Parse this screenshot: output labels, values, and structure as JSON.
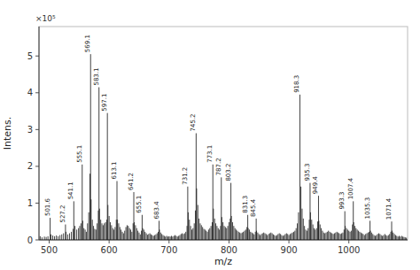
{
  "chart_data": {
    "type": "stem",
    "xlabel": "m/z",
    "ylabel": "Intens.",
    "xlim": [
      483,
      1098
    ],
    "ylim": [
      0,
      5.8
    ],
    "xticks": [
      500,
      600,
      700,
      800,
      900,
      1000
    ],
    "yticks": [
      0,
      1,
      2,
      3,
      4,
      5
    ],
    "color": "#111111",
    "x": [
      485,
      488,
      492,
      495,
      498,
      501.6,
      503,
      506,
      509,
      512,
      515,
      518,
      521,
      524,
      527.2,
      528,
      531,
      534,
      537,
      540,
      541.1,
      543,
      546,
      549,
      551,
      553,
      555.1,
      556,
      558,
      560,
      562,
      564,
      566,
      568,
      569.1,
      570,
      572,
      574,
      576,
      578,
      580,
      582,
      583.1,
      584,
      586,
      588,
      590,
      592,
      594,
      596,
      597.1,
      598,
      600,
      602,
      604,
      606,
      608,
      610,
      612,
      613.1,
      614,
      616,
      618,
      620,
      622,
      624,
      626,
      628,
      630,
      632,
      634,
      636,
      638,
      640,
      641.2,
      642,
      644,
      646,
      648,
      650,
      652,
      654,
      655.1,
      656,
      658,
      660,
      662,
      664,
      666,
      668,
      670,
      672,
      674,
      676,
      678,
      680,
      682,
      683.4,
      684,
      686,
      688,
      690,
      692,
      694,
      696,
      698,
      700,
      702,
      704,
      706,
      708,
      710,
      712,
      714,
      716,
      718,
      720,
      722,
      724,
      726,
      728,
      730,
      731.2,
      732,
      734,
      736,
      738,
      740,
      742,
      744,
      745.2,
      746,
      748,
      750,
      752,
      754,
      756,
      758,
      760,
      762,
      764,
      766,
      768,
      770,
      772,
      773.1,
      774,
      776,
      778,
      780,
      782,
      784,
      786,
      787.2,
      788,
      790,
      792,
      794,
      796,
      798,
      800,
      802,
      803.2,
      804,
      806,
      808,
      810,
      812,
      814,
      816,
      818,
      820,
      822,
      824,
      826,
      828,
      830,
      831.3,
      832,
      834,
      836,
      838,
      840,
      842,
      844,
      845.4,
      846,
      848,
      850,
      852,
      854,
      856,
      858,
      860,
      862,
      864,
      866,
      868,
      870,
      872,
      874,
      876,
      878,
      880,
      882,
      884,
      886,
      888,
      890,
      892,
      894,
      896,
      898,
      900,
      902,
      904,
      906,
      908,
      910,
      912,
      914,
      916,
      918.3,
      920,
      922,
      924,
      926,
      928,
      930,
      932,
      934,
      935.3,
      936,
      938,
      940,
      942,
      944,
      946,
      948,
      949.4,
      950,
      952,
      954,
      956,
      958,
      960,
      962,
      964,
      966,
      968,
      970,
      972,
      974,
      976,
      978,
      980,
      982,
      984,
      986,
      988,
      990,
      992,
      993.3,
      994,
      996,
      998,
      1000,
      1002,
      1004,
      1006,
      1007.4,
      1008,
      1010,
      1012,
      1014,
      1016,
      1018,
      1020,
      1022,
      1024,
      1026,
      1028,
      1030,
      1032,
      1034,
      1035.3,
      1036,
      1038,
      1040,
      1042,
      1044,
      1046,
      1048,
      1050,
      1052,
      1054,
      1056,
      1058,
      1060,
      1062,
      1064,
      1066,
      1068,
      1070,
      1071.4,
      1072,
      1074,
      1076,
      1078,
      1080,
      1082,
      1084,
      1086,
      1088,
      1090,
      1092,
      1094,
      1096
    ],
    "values": [
      0.1,
      0.07,
      0.09,
      0.08,
      0.1,
      0.6,
      0.15,
      0.12,
      0.1,
      0.12,
      0.1,
      0.13,
      0.15,
      0.18,
      0.42,
      0.22,
      0.15,
      0.18,
      0.22,
      0.3,
      1.05,
      0.38,
      0.28,
      0.32,
      0.38,
      0.45,
      2.05,
      0.52,
      0.32,
      0.28,
      0.22,
      0.45,
      0.75,
      1.8,
      5.05,
      1.1,
      0.55,
      0.38,
      0.3,
      0.28,
      0.45,
      0.8,
      4.15,
      0.85,
      0.55,
      0.45,
      0.4,
      0.45,
      0.48,
      0.55,
      3.45,
      0.95,
      0.65,
      0.48,
      0.4,
      0.32,
      0.28,
      0.35,
      0.55,
      1.6,
      0.55,
      0.45,
      0.35,
      0.28,
      0.22,
      0.18,
      0.25,
      0.35,
      0.4,
      0.38,
      0.32,
      0.28,
      0.22,
      0.45,
      1.3,
      0.48,
      0.4,
      0.32,
      0.25,
      0.2,
      0.15,
      0.25,
      0.68,
      0.32,
      0.28,
      0.22,
      0.18,
      0.14,
      0.16,
      0.18,
      0.15,
      0.13,
      0.11,
      0.13,
      0.15,
      0.18,
      0.22,
      0.52,
      0.28,
      0.2,
      0.16,
      0.13,
      0.11,
      0.09,
      0.11,
      0.09,
      0.1,
      0.09,
      0.11,
      0.09,
      0.11,
      0.13,
      0.11,
      0.09,
      0.11,
      0.13,
      0.16,
      0.18,
      0.16,
      0.18,
      0.22,
      0.38,
      1.45,
      0.75,
      0.55,
      0.38,
      0.28,
      0.32,
      0.45,
      0.8,
      2.9,
      1.4,
      0.95,
      0.58,
      0.45,
      0.4,
      0.35,
      0.3,
      0.28,
      0.25,
      0.22,
      0.28,
      0.32,
      0.38,
      0.48,
      2.05,
      0.85,
      0.58,
      0.45,
      0.38,
      0.32,
      0.28,
      0.38,
      1.7,
      0.62,
      0.48,
      0.38,
      0.35,
      0.32,
      0.38,
      0.48,
      0.58,
      1.55,
      0.65,
      0.48,
      0.38,
      0.32,
      0.28,
      0.25,
      0.22,
      0.2,
      0.18,
      0.2,
      0.22,
      0.25,
      0.28,
      0.35,
      0.68,
      0.32,
      0.28,
      0.22,
      0.2,
      0.18,
      0.15,
      0.22,
      0.58,
      0.25,
      0.2,
      0.16,
      0.13,
      0.16,
      0.18,
      0.2,
      0.18,
      0.16,
      0.13,
      0.16,
      0.18,
      0.2,
      0.18,
      0.15,
      0.13,
      0.11,
      0.13,
      0.16,
      0.18,
      0.16,
      0.13,
      0.11,
      0.13,
      0.16,
      0.18,
      0.16,
      0.13,
      0.16,
      0.18,
      0.2,
      0.22,
      0.25,
      0.32,
      0.45,
      0.75,
      3.95,
      1.45,
      0.85,
      0.58,
      0.38,
      0.28,
      0.25,
      0.32,
      0.55,
      1.55,
      0.75,
      0.55,
      0.42,
      0.32,
      0.28,
      0.32,
      0.5,
      1.2,
      0.52,
      0.42,
      0.32,
      0.25,
      0.2,
      0.18,
      0.2,
      0.22,
      0.25,
      0.22,
      0.2,
      0.18,
      0.16,
      0.18,
      0.2,
      0.22,
      0.2,
      0.18,
      0.16,
      0.18,
      0.2,
      0.28,
      0.78,
      0.38,
      0.32,
      0.28,
      0.25,
      0.22,
      0.25,
      0.42,
      1.05,
      0.48,
      0.38,
      0.32,
      0.28,
      0.25,
      0.22,
      0.2,
      0.18,
      0.16,
      0.13,
      0.16,
      0.18,
      0.2,
      0.22,
      0.52,
      0.25,
      0.2,
      0.16,
      0.13,
      0.11,
      0.13,
      0.16,
      0.18,
      0.16,
      0.13,
      0.11,
      0.13,
      0.16,
      0.13,
      0.11,
      0.13,
      0.16,
      0.22,
      0.5,
      0.25,
      0.2,
      0.16,
      0.13,
      0.11,
      0.09,
      0.11,
      0.09,
      0.11,
      0.09,
      0.08,
      0.07,
      0.06
    ],
    "annotations": [
      {
        "text": "×10⁵"
      },
      {
        "x": 501.6,
        "y": 0.6,
        "text": "501.6"
      },
      {
        "x": 527.2,
        "y": 0.42,
        "text": "527.2"
      },
      {
        "x": 541.1,
        "y": 1.05,
        "text": "541.1"
      },
      {
        "x": 555.1,
        "y": 2.05,
        "text": "555.1"
      },
      {
        "x": 569.1,
        "y": 5.05,
        "text": "569.1"
      },
      {
        "x": 583.1,
        "y": 4.15,
        "text": "583.1"
      },
      {
        "x": 597.1,
        "y": 3.45,
        "text": "597.1"
      },
      {
        "x": 613.1,
        "y": 1.6,
        "text": "613.1"
      },
      {
        "x": 641.2,
        "y": 1.3,
        "text": "641.2"
      },
      {
        "x": 655.1,
        "y": 0.68,
        "text": "655.1"
      },
      {
        "x": 683.4,
        "y": 0.52,
        "text": "683.4"
      },
      {
        "x": 731.2,
        "y": 1.45,
        "text": "731.2"
      },
      {
        "x": 745.2,
        "y": 2.9,
        "text": "745.2"
      },
      {
        "x": 773.1,
        "y": 2.05,
        "text": "773.1"
      },
      {
        "x": 787.2,
        "y": 1.7,
        "text": "787.2"
      },
      {
        "x": 803.2,
        "y": 1.55,
        "text": "803.2"
      },
      {
        "x": 831.3,
        "y": 0.68,
        "text": "831.3"
      },
      {
        "x": 845.4,
        "y": 0.58,
        "text": "845.4"
      },
      {
        "x": 918.3,
        "y": 3.95,
        "text": "918.3"
      },
      {
        "x": 935.3,
        "y": 1.55,
        "text": "935.3"
      },
      {
        "x": 949.4,
        "y": 1.2,
        "text": "949.4"
      },
      {
        "x": 993.3,
        "y": 0.78,
        "text": "993.3"
      },
      {
        "x": 1007.4,
        "y": 1.05,
        "text": "1007.4"
      },
      {
        "x": 1035.3,
        "y": 0.52,
        "text": "1035.3"
      },
      {
        "x": 1071.4,
        "y": 0.5,
        "text": "1071.4"
      }
    ]
  }
}
